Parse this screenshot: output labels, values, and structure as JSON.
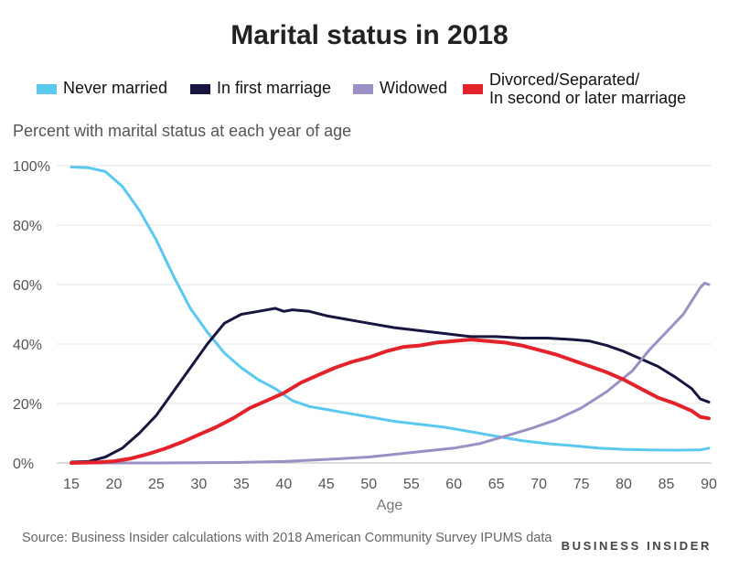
{
  "chart_data": {
    "type": "line",
    "title": "Marital status in 2018",
    "subtitle": "Percent with marital status at each year of age",
    "xlabel": "Age",
    "ylabel": "",
    "xlim": [
      15,
      90
    ],
    "ylim": [
      0,
      100
    ],
    "x_ticks": [
      15,
      20,
      25,
      30,
      35,
      40,
      45,
      50,
      55,
      60,
      65,
      70,
      75,
      80,
      85,
      90
    ],
    "y_ticks": [
      0,
      20,
      40,
      60,
      80,
      100
    ],
    "y_tick_labels": [
      "0%",
      "20%",
      "40%",
      "60%",
      "80%",
      "100%"
    ],
    "grid": "horizontal",
    "legend_position": "top",
    "series": [
      {
        "name": "Never married",
        "color": "#5bc8f0",
        "points": [
          [
            15,
            99.5
          ],
          [
            17,
            99.3
          ],
          [
            19,
            98
          ],
          [
            21,
            93
          ],
          [
            23,
            85
          ],
          [
            25,
            75
          ],
          [
            27,
            63
          ],
          [
            29,
            52
          ],
          [
            31,
            44
          ],
          [
            33,
            37
          ],
          [
            35,
            32
          ],
          [
            37,
            28
          ],
          [
            39,
            25
          ],
          [
            41,
            21
          ],
          [
            43,
            19
          ],
          [
            45,
            18
          ],
          [
            47,
            17
          ],
          [
            50,
            15.5
          ],
          [
            53,
            14
          ],
          [
            56,
            13
          ],
          [
            59,
            12
          ],
          [
            62,
            10.5
          ],
          [
            65,
            9
          ],
          [
            68,
            7.5
          ],
          [
            71,
            6.5
          ],
          [
            74,
            5.8
          ],
          [
            77,
            5
          ],
          [
            80,
            4.6
          ],
          [
            83,
            4.4
          ],
          [
            86,
            4.3
          ],
          [
            89,
            4.4
          ],
          [
            90,
            5
          ]
        ]
      },
      {
        "name": "In first marriage",
        "color": "#161640",
        "points": [
          [
            15,
            0.3
          ],
          [
            17,
            0.5
          ],
          [
            19,
            2
          ],
          [
            21,
            5
          ],
          [
            23,
            10
          ],
          [
            25,
            16
          ],
          [
            27,
            24
          ],
          [
            29,
            32
          ],
          [
            31,
            40
          ],
          [
            33,
            47
          ],
          [
            35,
            50
          ],
          [
            37,
            51
          ],
          [
            39,
            52
          ],
          [
            40,
            51
          ],
          [
            41,
            51.5
          ],
          [
            43,
            51
          ],
          [
            45,
            49.5
          ],
          [
            47,
            48.5
          ],
          [
            50,
            47
          ],
          [
            53,
            45.5
          ],
          [
            56,
            44.5
          ],
          [
            59,
            43.5
          ],
          [
            62,
            42.5
          ],
          [
            65,
            42.5
          ],
          [
            68,
            42
          ],
          [
            71,
            42
          ],
          [
            74,
            41.5
          ],
          [
            76,
            41
          ],
          [
            78,
            39.5
          ],
          [
            80,
            37.5
          ],
          [
            82,
            35
          ],
          [
            84,
            32.5
          ],
          [
            86,
            29
          ],
          [
            88,
            25
          ],
          [
            89,
            21.5
          ],
          [
            90,
            20.5
          ]
        ]
      },
      {
        "name": "Widowed",
        "color": "#9c8fc4",
        "points": [
          [
            15,
            0
          ],
          [
            25,
            0
          ],
          [
            35,
            0.2
          ],
          [
            40,
            0.5
          ],
          [
            45,
            1.2
          ],
          [
            50,
            2
          ],
          [
            55,
            3.5
          ],
          [
            60,
            5
          ],
          [
            63,
            6.5
          ],
          [
            66,
            9
          ],
          [
            69,
            11.5
          ],
          [
            72,
            14.5
          ],
          [
            75,
            18.5
          ],
          [
            78,
            24
          ],
          [
            81,
            31
          ],
          [
            83,
            38
          ],
          [
            85,
            44
          ],
          [
            87,
            50
          ],
          [
            89,
            59
          ],
          [
            89.5,
            60.5
          ],
          [
            90,
            60
          ]
        ]
      },
      {
        "name": "Divorced/Separated/\nIn second or later marriage",
        "color": "#e3222a",
        "points": [
          [
            15,
            0
          ],
          [
            18,
            0.2
          ],
          [
            20,
            0.6
          ],
          [
            22,
            1.5
          ],
          [
            24,
            3
          ],
          [
            26,
            4.8
          ],
          [
            28,
            7
          ],
          [
            30,
            9.5
          ],
          [
            32,
            12
          ],
          [
            34,
            15
          ],
          [
            36,
            18.5
          ],
          [
            38,
            21
          ],
          [
            40,
            23.5
          ],
          [
            42,
            27
          ],
          [
            44,
            29.5
          ],
          [
            46,
            32
          ],
          [
            48,
            34
          ],
          [
            50,
            35.5
          ],
          [
            52,
            37.5
          ],
          [
            54,
            39
          ],
          [
            56,
            39.5
          ],
          [
            58,
            40.5
          ],
          [
            60,
            41
          ],
          [
            62,
            41.5
          ],
          [
            64,
            41
          ],
          [
            66,
            40.5
          ],
          [
            68,
            39.5
          ],
          [
            70,
            38
          ],
          [
            72,
            36.5
          ],
          [
            74,
            34.5
          ],
          [
            76,
            32.5
          ],
          [
            78,
            30.5
          ],
          [
            80,
            28
          ],
          [
            82,
            25
          ],
          [
            84,
            22
          ],
          [
            86,
            20
          ],
          [
            88,
            17.5
          ],
          [
            89,
            15.5
          ],
          [
            90,
            15
          ]
        ]
      }
    ]
  },
  "source": "Source: Business Insider calculations with 2018 American Community Survey IPUMS data",
  "brand": "BUSINESS INSIDER"
}
